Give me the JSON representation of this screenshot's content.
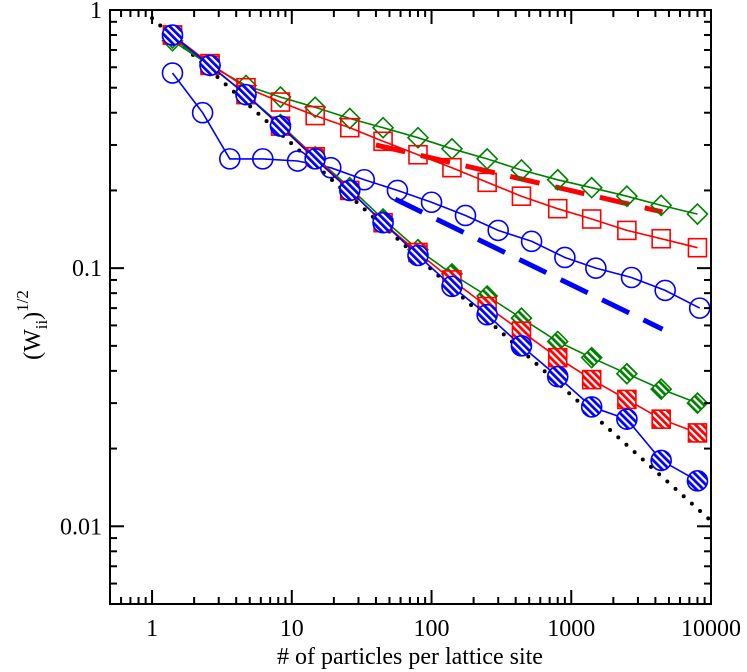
{
  "chart_data": {
    "type": "line",
    "xlabel": "# of particles per lattice site",
    "ylabel": {
      "base": "(W",
      "subscript": "ii",
      "close": ")",
      "superscript": "1/2"
    },
    "x_scale": "log",
    "y_scale": "log",
    "xlim": [
      0.5,
      10000
    ],
    "ylim": [
      0.005,
      1
    ],
    "grid": false,
    "x_tick_labels": [
      "1",
      "10",
      "100",
      "1000",
      "10000"
    ],
    "y_tick_labels": [
      "0.01",
      "0.1",
      "1"
    ],
    "x_ticks": [
      1,
      10,
      100,
      1000,
      10000
    ],
    "y_ticks": [
      0.01,
      0.1,
      1
    ],
    "colors": {
      "blue": "#0000ff",
      "red": "#ff0000",
      "green": "#008000",
      "black": "#000000"
    },
    "series": [
      {
        "marker": "diamond",
        "fill": "open",
        "color": "#008000",
        "x": [
          1.4,
          2.6,
          4.7,
          8.3,
          14.7,
          26,
          45,
          80,
          140,
          250,
          440,
          800,
          1400,
          2500,
          4400,
          8000
        ],
        "y": [
          0.76,
          0.61,
          0.51,
          0.46,
          0.42,
          0.38,
          0.35,
          0.32,
          0.29,
          0.265,
          0.24,
          0.22,
          0.205,
          0.19,
          0.175,
          0.162
        ]
      },
      {
        "marker": "square",
        "fill": "open",
        "color": "#ff0000",
        "x": [
          1.4,
          2.6,
          4.7,
          8.3,
          14.7,
          26,
          45,
          80,
          140,
          250,
          440,
          800,
          1400,
          2500,
          4400,
          8000
        ],
        "y": [
          0.8,
          0.62,
          0.5,
          0.44,
          0.39,
          0.35,
          0.31,
          0.275,
          0.245,
          0.215,
          0.19,
          0.17,
          0.155,
          0.14,
          0.13,
          0.12
        ]
      },
      {
        "marker": "circle",
        "fill": "open",
        "color": "#0000ff",
        "x": [
          1.4,
          2.3,
          3.6,
          6.2,
          11,
          19,
          33,
          57,
          100,
          175,
          300,
          520,
          900,
          1500,
          2700,
          4700,
          8300
        ],
        "y": [
          0.57,
          0.4,
          0.265,
          0.265,
          0.26,
          0.245,
          0.22,
          0.2,
          0.18,
          0.16,
          0.14,
          0.127,
          0.11,
          0.1,
          0.092,
          0.082,
          0.07
        ]
      },
      {
        "marker": "diamond",
        "fill": "hatched",
        "color": "#008000",
        "x": [
          1.4,
          2.6,
          4.7,
          8.3,
          14.7,
          26,
          45,
          80,
          140,
          250,
          440,
          800,
          1400,
          2500,
          4400,
          8000
        ],
        "y": [
          0.78,
          0.61,
          0.47,
          0.36,
          0.27,
          0.205,
          0.155,
          0.118,
          0.095,
          0.078,
          0.064,
          0.052,
          0.045,
          0.039,
          0.034,
          0.03
        ]
      },
      {
        "marker": "square",
        "fill": "hatched",
        "color": "#ff0000",
        "x": [
          1.4,
          2.6,
          4.7,
          8.3,
          14.7,
          26,
          45,
          80,
          140,
          250,
          440,
          800,
          1400,
          2500,
          4400,
          8000
        ],
        "y": [
          0.8,
          0.61,
          0.47,
          0.355,
          0.27,
          0.2,
          0.15,
          0.115,
          0.09,
          0.071,
          0.057,
          0.045,
          0.037,
          0.031,
          0.026,
          0.023
        ]
      },
      {
        "marker": "circle",
        "fill": "hatched",
        "color": "#0000ff",
        "x": [
          1.4,
          2.6,
          4.7,
          8.3,
          14.7,
          26,
          45,
          80,
          140,
          250,
          440,
          800,
          1400,
          2500,
          4400,
          8000
        ],
        "y": [
          0.8,
          0.61,
          0.47,
          0.355,
          0.265,
          0.2,
          0.15,
          0.112,
          0.085,
          0.066,
          0.05,
          0.038,
          0.029,
          0.026,
          0.018,
          0.015
        ]
      }
    ],
    "reference_lines": [
      {
        "style": "dotted",
        "color": "#000000",
        "x": [
          1,
          10000
        ],
        "y": [
          0.93,
          0.0105
        ]
      },
      {
        "style": "dashed",
        "color": "#ff0000",
        "x": [
          40,
          4500
        ],
        "y": [
          0.3,
          0.165
        ]
      },
      {
        "style": "dashed",
        "color": "#0000ff",
        "x": [
          55,
          4500
        ],
        "y": [
          0.185,
          0.058
        ]
      }
    ]
  }
}
